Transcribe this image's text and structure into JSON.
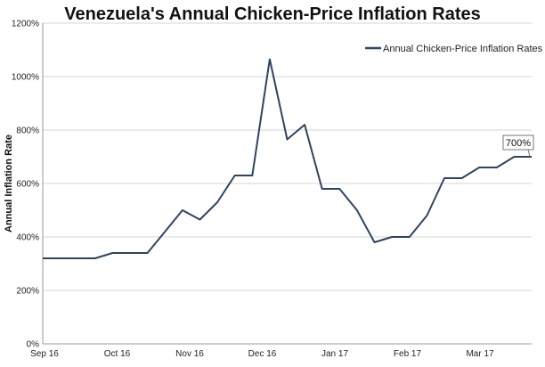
{
  "chart_data": {
    "type": "line",
    "title": "Venezuela's Annual Chicken-Price Inflation Rates",
    "xlabel": "",
    "ylabel": "Annual Inflation Rate",
    "ylim": [
      0,
      1200
    ],
    "yticks": [
      "0%",
      "200%",
      "400%",
      "600%",
      "800%",
      "1000%",
      "1200%"
    ],
    "xtick_labels": [
      "Sep 16",
      "Oct 16",
      "Nov 16",
      "Dec 16",
      "Jan 17",
      "Feb 17",
      "Mar 17"
    ],
    "grid": "horizontal",
    "legend": {
      "position": "top-right"
    },
    "series": [
      {
        "name": "Annual Chicken-Price Inflation Rates",
        "color": "#2e4560",
        "values": [
          320,
          320,
          320,
          320,
          340,
          340,
          340,
          420,
          500,
          465,
          530,
          630,
          630,
          1065,
          765,
          820,
          580,
          580,
          500,
          380,
          400,
          400,
          480,
          620,
          620,
          660,
          660,
          700,
          700
        ]
      }
    ],
    "annotations": [
      {
        "text": "700%",
        "value": 700
      }
    ]
  }
}
